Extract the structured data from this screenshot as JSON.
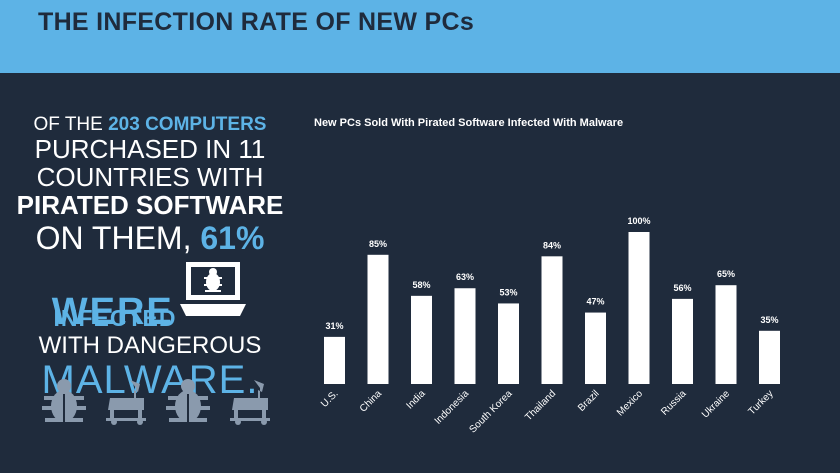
{
  "header": {
    "title": "THE INFECTION RATE OF NEW PCs"
  },
  "stat": {
    "line1_a": "OF THE ",
    "line1_b": "203 COMPUTERS",
    "line2": "PURCHASED IN 11",
    "line3": "COUNTRIES WITH",
    "line4": "PIRATED SOFTWARE",
    "line5_a": "ON THEM, ",
    "line5_b": "61%",
    "line6": "WERE",
    "line7": "INFECTED",
    "line8": "WITH DANGEROUS",
    "line9": "MALWARE."
  },
  "icons": [
    "bug-icon",
    "trojan-horse-icon",
    "bug-icon",
    "trojan-horse-icon",
    "computer-bug-icon"
  ],
  "colors": {
    "header_bg": "#5db3e6",
    "page_bg": "#1f2b3c",
    "bar": "#ffffff",
    "accent": "#5db3e6",
    "icon_gray": "#8a9aad"
  },
  "chart_data": {
    "type": "bar",
    "title": "New PCs Sold With Pirated Software Infected With Malware",
    "categories": [
      "U.S.",
      "China",
      "India",
      "Indonesia",
      "South Korea",
      "Thailand",
      "Brazil",
      "Mexico",
      "Russia",
      "Ukraine",
      "Turkey"
    ],
    "values": [
      31,
      85,
      58,
      63,
      53,
      84,
      47,
      100,
      56,
      65,
      35
    ],
    "value_labels": [
      "31%",
      "85%",
      "58%",
      "63%",
      "53%",
      "84%",
      "47%",
      "100%",
      "56%",
      "65%",
      "35%"
    ],
    "ylim": [
      0,
      100
    ],
    "grid": false,
    "legend": "none"
  }
}
